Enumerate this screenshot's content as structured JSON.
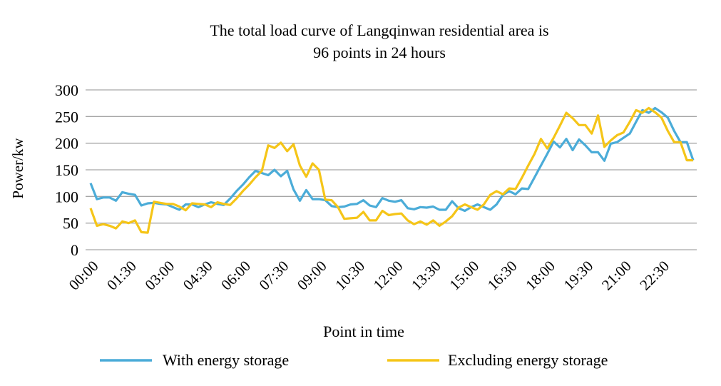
{
  "chart_data": {
    "type": "line",
    "title_lines": [
      "The total load curve of Langqinwan residential area is",
      "96 points in 24 hours"
    ],
    "xlabel": "Point in time",
    "ylabel": "Power/kw",
    "ylim": [
      0,
      300
    ],
    "yticks": [
      0,
      50,
      100,
      150,
      200,
      250,
      300
    ],
    "xtick_labels": [
      "00:00",
      "01:30",
      "03:00",
      "04:30",
      "06:00",
      "07:30",
      "09:00",
      "10:30",
      "12:00",
      "13:30",
      "15:00",
      "16:30",
      "18:00",
      "19:30",
      "21:00",
      "22:30"
    ],
    "xtick_step": 6,
    "point_count": 96,
    "grid": true,
    "legend_position": "bottom",
    "series": [
      {
        "name": "With energy storage",
        "color": "#4bacd8",
        "values": [
          125,
          95,
          98,
          98,
          92,
          108,
          105,
          103,
          83,
          87,
          88,
          86,
          85,
          80,
          75,
          85,
          85,
          80,
          85,
          89,
          86,
          84,
          96,
          110,
          122,
          136,
          148,
          144,
          140,
          150,
          138,
          148,
          113,
          92,
          112,
          95,
          95,
          93,
          82,
          80,
          81,
          85,
          86,
          93,
          83,
          80,
          97,
          92,
          90,
          93,
          78,
          76,
          80,
          79,
          81,
          75,
          75,
          91,
          78,
          73,
          80,
          85,
          80,
          75,
          85,
          103,
          110,
          104,
          115,
          114,
          136,
          158,
          180,
          203,
          192,
          208,
          187,
          207,
          196,
          183,
          183,
          167,
          199,
          202,
          210,
          218,
          240,
          262,
          257,
          266,
          258,
          248,
          223,
          202,
          202,
          168
        ]
      },
      {
        "name": "Excluding energy storage",
        "color": "#f5c518",
        "values": [
          78,
          45,
          48,
          45,
          40,
          53,
          50,
          55,
          33,
          32,
          90,
          88,
          86,
          86,
          81,
          74,
          87,
          86,
          85,
          80,
          89,
          86,
          84,
          96,
          110,
          122,
          136,
          148,
          196,
          191,
          201,
          185,
          198,
          158,
          137,
          162,
          150,
          94,
          93,
          80,
          58,
          59,
          60,
          71,
          55,
          55,
          73,
          65,
          67,
          68,
          55,
          48,
          53,
          47,
          55,
          45,
          53,
          63,
          79,
          85,
          80,
          75,
          85,
          103,
          110,
          104,
          115,
          114,
          135,
          158,
          180,
          208,
          190,
          210,
          233,
          257,
          247,
          234,
          234,
          218,
          252,
          193,
          205,
          215,
          220,
          240,
          262,
          257,
          266,
          258,
          248,
          223,
          202,
          202,
          168,
          168
        ]
      }
    ]
  }
}
